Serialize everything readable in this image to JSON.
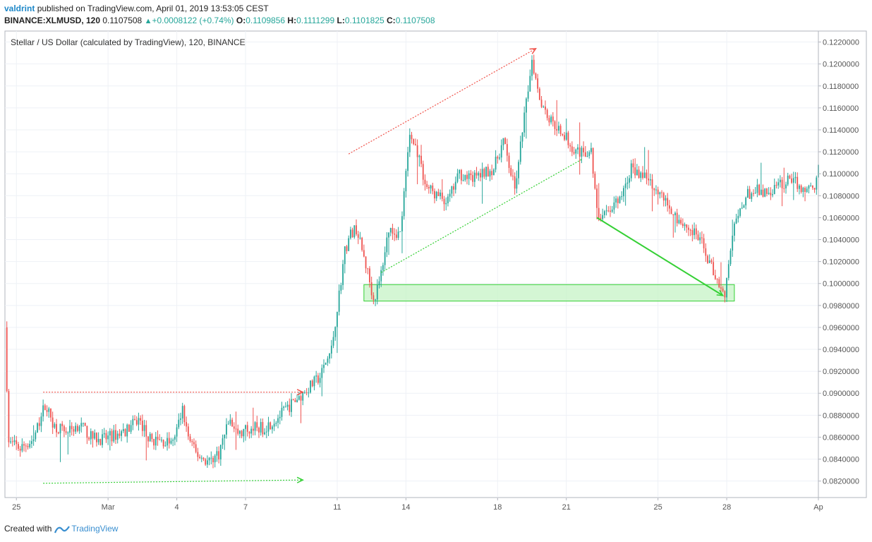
{
  "header": {
    "author": "valdrint",
    "published": "published on TradingView.com, April 01, 2019 13:53:05 CEST",
    "symbol": "BINANCE:XLMUSD, 120",
    "last": "0.1107508",
    "change": "+0.0008122 (+0.74%)",
    "o_label": "O:",
    "o": "0.1109856",
    "h_label": "H:",
    "h": "0.1111299",
    "l_label": "L:",
    "l": "0.1101825",
    "c_label": "C:",
    "c": "0.1107508"
  },
  "footer": {
    "created_with": "Created with",
    "brand": "TradingView"
  },
  "colors": {
    "up": "#26a69a",
    "down": "#ef5350",
    "grid": "#eef1f6",
    "axis": "#b2b5be",
    "text": "#555555",
    "zone_fill": "#c6f3c6",
    "zone_stroke": "#35d035",
    "trend_red": "#f0524a",
    "trend_green": "#35d035"
  },
  "chart_data": {
    "type": "candlestick",
    "title": "Stellar / US Dollar (calculated by TradingView), 120, BINANCE",
    "interval": "120",
    "x_ticks": [
      "25",
      "Mar",
      "4",
      "7",
      "11",
      "14",
      "18",
      "21",
      "25",
      "28",
      "Ap"
    ],
    "y_ticks": [
      "0.1220000",
      "0.1200000",
      "0.1180000",
      "0.1160000",
      "0.1140000",
      "0.1120000",
      "0.1100000",
      "0.1080000",
      "0.1060000",
      "0.1040000",
      "0.1020000",
      "0.1000000",
      "0.0980000",
      "0.0960000",
      "0.0940000",
      "0.0920000",
      "0.0900000",
      "0.0880000",
      "0.0860000",
      "0.0840000",
      "0.0820000"
    ],
    "ylim": [
      0.0805,
      0.123
    ],
    "xlim": [
      "2019-02-24T12:00",
      "2019-04-01T00:00"
    ],
    "grid": true,
    "close_path": [
      [
        "2019-02-24T12:00",
        0.096
      ],
      [
        "2019-02-24T16:00",
        0.0855
      ],
      [
        "2019-02-25T04:00",
        0.085
      ],
      [
        "2019-02-25T18:00",
        0.0858
      ],
      [
        "2019-02-26T06:00",
        0.089
      ],
      [
        "2019-02-26T16:00",
        0.087
      ],
      [
        "2019-02-27T06:00",
        0.0865
      ],
      [
        "2019-02-27T18:00",
        0.0872
      ],
      [
        "2019-02-28T06:00",
        0.086
      ],
      [
        "2019-02-28T18:00",
        0.0858
      ],
      [
        "2019-03-01T08:00",
        0.0862
      ],
      [
        "2019-03-01T20:00",
        0.0867
      ],
      [
        "2019-03-02T08:00",
        0.0876
      ],
      [
        "2019-03-02T20:00",
        0.0858
      ],
      [
        "2019-03-03T08:00",
        0.0856
      ],
      [
        "2019-03-03T20:00",
        0.0855
      ],
      [
        "2019-03-04T06:00",
        0.0885
      ],
      [
        "2019-03-04T12:00",
        0.086
      ],
      [
        "2019-03-04T20:00",
        0.0845
      ],
      [
        "2019-03-05T08:00",
        0.0838
      ],
      [
        "2019-03-05T20:00",
        0.0845
      ],
      [
        "2019-03-06T06:00",
        0.0875
      ],
      [
        "2019-03-06T18:00",
        0.0862
      ],
      [
        "2019-03-07T06:00",
        0.087
      ],
      [
        "2019-03-07T18:00",
        0.0868
      ],
      [
        "2019-03-08T06:00",
        0.0875
      ],
      [
        "2019-03-08T18:00",
        0.0885
      ],
      [
        "2019-03-09T06:00",
        0.0895
      ],
      [
        "2019-03-09T18:00",
        0.0905
      ],
      [
        "2019-03-10T06:00",
        0.0915
      ],
      [
        "2019-03-10T18:00",
        0.094
      ],
      [
        "2019-03-11T02:00",
        0.099
      ],
      [
        "2019-03-11T08:00",
        0.103
      ],
      [
        "2019-03-11T14:00",
        0.1045
      ],
      [
        "2019-03-11T20:00",
        0.105
      ],
      [
        "2019-03-12T02:00",
        0.103
      ],
      [
        "2019-03-12T08:00",
        0.101
      ],
      [
        "2019-03-12T14:00",
        0.0985
      ],
      [
        "2019-03-12T20:00",
        0.1
      ],
      [
        "2019-03-13T06:00",
        0.105
      ],
      [
        "2019-03-13T18:00",
        0.1045
      ],
      [
        "2019-03-14T04:00",
        0.1135
      ],
      [
        "2019-03-14T12:00",
        0.112
      ],
      [
        "2019-03-14T20:00",
        0.109
      ],
      [
        "2019-03-15T08:00",
        0.108
      ],
      [
        "2019-03-15T20:00",
        0.1075
      ],
      [
        "2019-03-16T08:00",
        0.11
      ],
      [
        "2019-03-16T20:00",
        0.1095
      ],
      [
        "2019-03-17T08:00",
        0.11
      ],
      [
        "2019-03-17T20:00",
        0.1105
      ],
      [
        "2019-03-18T06:00",
        0.113
      ],
      [
        "2019-03-18T18:00",
        0.1085
      ],
      [
        "2019-03-19T06:00",
        0.1165
      ],
      [
        "2019-03-19T12:00",
        0.1205
      ],
      [
        "2019-03-19T20:00",
        0.117
      ],
      [
        "2019-03-20T06:00",
        0.115
      ],
      [
        "2019-03-20T18:00",
        0.114
      ],
      [
        "2019-03-21T06:00",
        0.1125
      ],
      [
        "2019-03-21T18:00",
        0.1118
      ],
      [
        "2019-03-22T02:00",
        0.112
      ],
      [
        "2019-03-22T08:00",
        0.1065
      ],
      [
        "2019-03-22T14:00",
        0.106
      ],
      [
        "2019-03-22T20:00",
        0.1068
      ],
      [
        "2019-03-23T08:00",
        0.1075
      ],
      [
        "2019-03-23T20:00",
        0.1105
      ],
      [
        "2019-03-24T08:00",
        0.11
      ],
      [
        "2019-03-24T20:00",
        0.109
      ],
      [
        "2019-03-25T08:00",
        0.1075
      ],
      [
        "2019-03-25T20:00",
        0.106
      ],
      [
        "2019-03-26T08:00",
        0.105
      ],
      [
        "2019-03-26T20:00",
        0.104
      ],
      [
        "2019-03-27T08:00",
        0.1015
      ],
      [
        "2019-03-27T16:00",
        0.1
      ],
      [
        "2019-03-27T22:00",
        0.0992
      ],
      [
        "2019-03-28T06:00",
        0.1045
      ],
      [
        "2019-03-28T12:00",
        0.106
      ],
      [
        "2019-03-28T20:00",
        0.108
      ],
      [
        "2019-03-29T08:00",
        0.1085
      ],
      [
        "2019-03-29T20:00",
        0.1082
      ],
      [
        "2019-03-30T08:00",
        0.109
      ],
      [
        "2019-03-30T20:00",
        0.1095
      ],
      [
        "2019-03-31T08:00",
        0.1085
      ],
      [
        "2019-03-31T20:00",
        0.109
      ],
      [
        "2019-04-01T00:00",
        0.1107508
      ]
    ],
    "annotations": [
      {
        "kind": "red-dotted-arrow",
        "from": [
          "2019-02-26T04:00",
          0.0901
        ],
        "to": [
          "2019-03-09T12:00",
          0.0901
        ]
      },
      {
        "kind": "green-dotted-arrow",
        "from": [
          "2019-02-26T04:00",
          0.0818
        ],
        "to": [
          "2019-03-09T12:00",
          0.0821
        ]
      },
      {
        "kind": "red-dotted-arrow",
        "from": [
          "2019-03-11T12:00",
          0.1118
        ],
        "to": [
          "2019-03-19T16:00",
          0.1214
        ]
      },
      {
        "kind": "green-dotted-line",
        "from": [
          "2019-03-12T22:00",
          0.101
        ],
        "to": [
          "2019-03-21T16:00",
          0.1113
        ]
      },
      {
        "kind": "green-arrow",
        "from": [
          "2019-03-22T08:00",
          0.106
        ],
        "to": [
          "2019-03-27T20:00",
          0.0989
        ]
      },
      {
        "kind": "support-zone",
        "x": [
          "2019-03-12T04:00",
          "2019-03-28T08:00"
        ],
        "y": [
          0.0984,
          0.0999
        ]
      }
    ]
  }
}
